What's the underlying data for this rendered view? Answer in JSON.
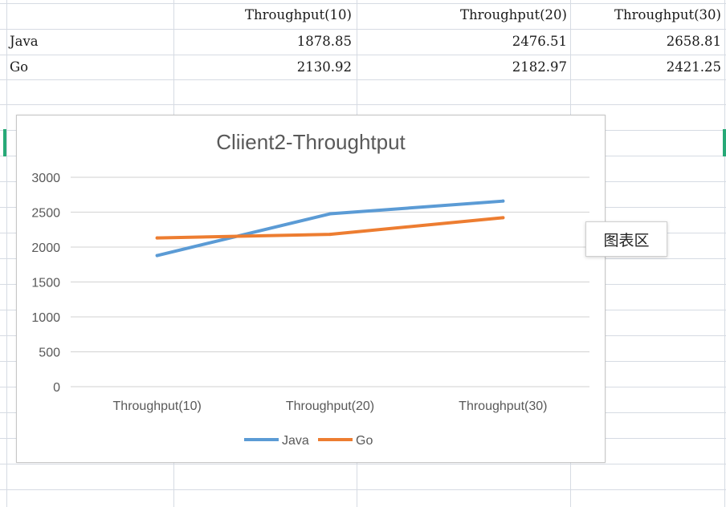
{
  "sheet": {
    "header_row": [
      "",
      "Throughput(10)",
      "Throughput(20)",
      "Throughput(30)"
    ],
    "rows": [
      {
        "label": "Java",
        "values": [
          "1878.85",
          "2476.51",
          "2658.81"
        ]
      },
      {
        "label": "Go",
        "values": [
          "2130.92",
          "2182.97",
          "2421.25"
        ]
      }
    ],
    "selection_color": "#27a977"
  },
  "chart_data": {
    "type": "line",
    "title": "Cliient2-Throughtput",
    "categories": [
      "Throughput(10)",
      "Throughput(20)",
      "Throughput(30)"
    ],
    "series": [
      {
        "name": "Java",
        "values": [
          1878.85,
          2476.51,
          2658.81
        ],
        "color": "#5b9bd5"
      },
      {
        "name": "Go",
        "values": [
          2130.92,
          2182.97,
          2421.25
        ],
        "color": "#ed7d31"
      }
    ],
    "ylim": [
      0,
      3000
    ],
    "yticks": [
      0,
      500,
      1000,
      1500,
      2000,
      2500,
      3000
    ],
    "grid": true,
    "legend": "bottom"
  },
  "tooltip": {
    "label": "图表区"
  }
}
